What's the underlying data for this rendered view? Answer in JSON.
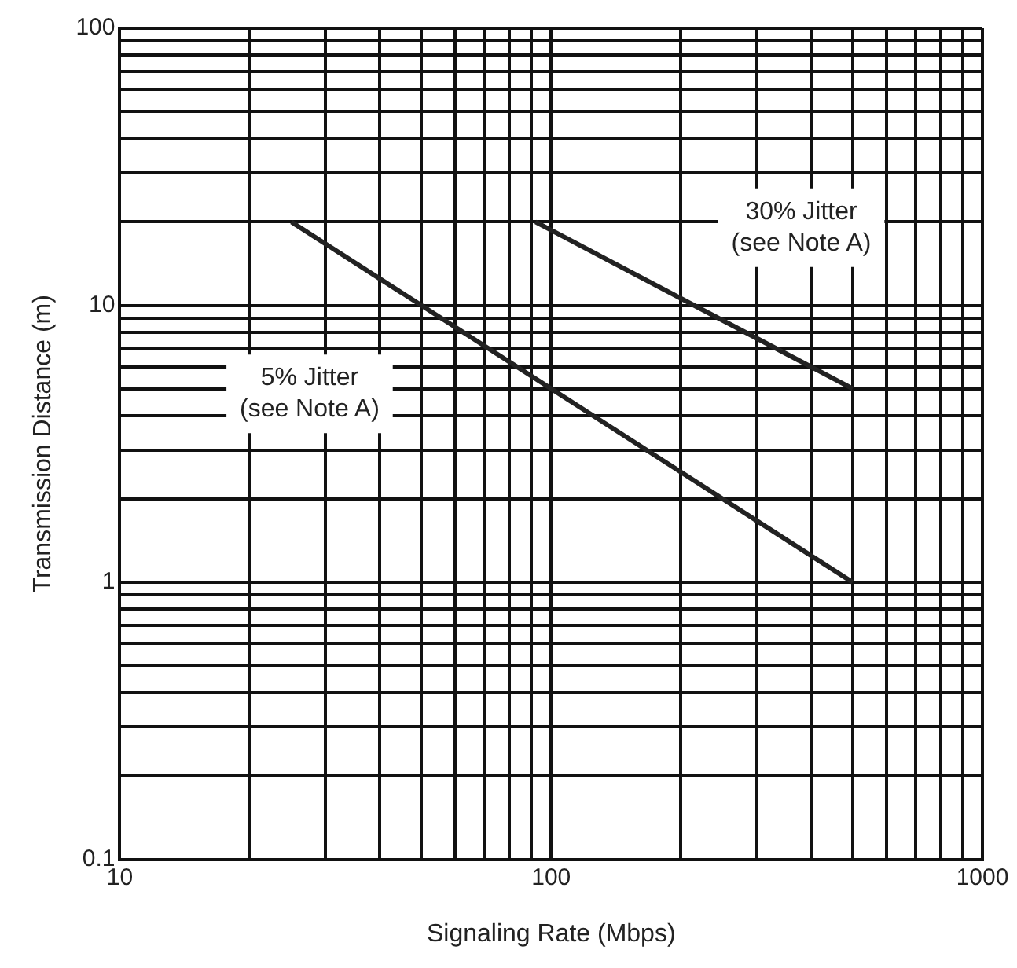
{
  "chart_data": {
    "type": "line",
    "xlabel": "Signaling Rate (Mbps)",
    "ylabel": "Transmission Distance (m)",
    "log": "xy",
    "grid": true,
    "legend": false,
    "marker": "none",
    "line_style": "solid",
    "xlim": [
      10,
      1000
    ],
    "ylim": [
      0.1,
      100
    ],
    "xticks": [
      10,
      {
        "value": 20,
        "label": null
      },
      {
        "value": 30,
        "label": null
      },
      {
        "value": 40,
        "label": null
      },
      {
        "value": 50,
        "label": null
      },
      {
        "value": 60,
        "label": null
      },
      {
        "value": 70,
        "label": null
      },
      {
        "value": 80,
        "label": null
      },
      {
        "value": 90,
        "label": null
      },
      100,
      {
        "value": 200,
        "label": null
      },
      {
        "value": 300,
        "label": null
      },
      {
        "value": 400,
        "label": null
      },
      {
        "value": 500,
        "label": null
      },
      {
        "value": 600,
        "label": null
      },
      {
        "value": 700,
        "label": null
      },
      {
        "value": 800,
        "label": null
      },
      {
        "value": 900,
        "label": null
      },
      1000
    ],
    "yticks": [
      0.1,
      {
        "value": 0.2,
        "label": null
      },
      {
        "value": 0.3,
        "label": null
      },
      {
        "value": 0.4,
        "label": null
      },
      {
        "value": 0.5,
        "label": null
      },
      {
        "value": 0.6,
        "label": null
      },
      {
        "value": 0.7,
        "label": null
      },
      {
        "value": 0.8,
        "label": null
      },
      {
        "value": 0.9,
        "label": null
      },
      1,
      {
        "value": 2,
        "label": null
      },
      {
        "value": 3,
        "label": null
      },
      {
        "value": 4,
        "label": null
      },
      {
        "value": 5,
        "label": null
      },
      {
        "value": 6,
        "label": null
      },
      {
        "value": 7,
        "label": null
      },
      {
        "value": 8,
        "label": null
      },
      {
        "value": 9,
        "label": null
      },
      10,
      {
        "value": 20,
        "label": null
      },
      {
        "value": 30,
        "label": null
      },
      {
        "value": 40,
        "label": null
      },
      {
        "value": 50,
        "label": null
      },
      {
        "value": 60,
        "label": null
      },
      {
        "value": 70,
        "label": null
      },
      {
        "value": 80,
        "label": null
      },
      {
        "value": 90,
        "label": null
      },
      100
    ],
    "series": [
      {
        "color": "#222222",
        "x": [
          25,
          500
        ],
        "values": [
          20,
          1
        ]
      },
      {
        "color": "#222222",
        "x": [
          92,
          500
        ],
        "values": [
          20,
          5
        ]
      }
    ],
    "annotations": [
      "5% Jitter\n(see Note A)",
      "30% Jitter\n(see Note A)"
    ]
  }
}
